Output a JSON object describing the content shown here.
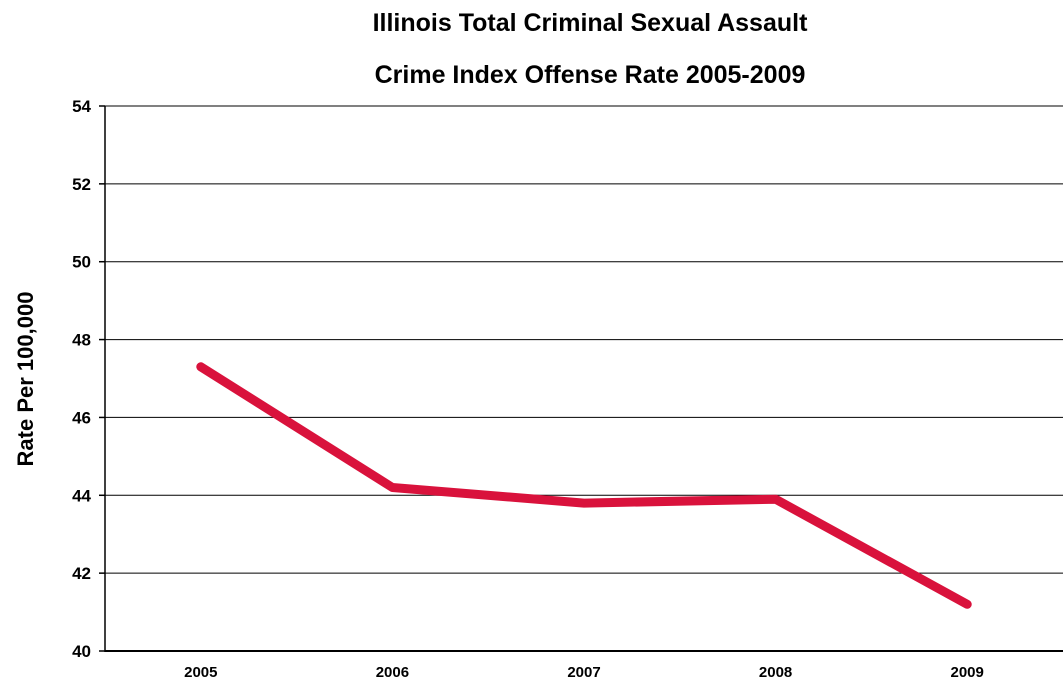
{
  "chart_data": {
    "type": "line",
    "title_line1": "Illinois Total Criminal Sexual Assault",
    "title_line2": "Crime Index Offense Rate 2005-2009",
    "xlabel": "",
    "ylabel": "Rate Per 100,000",
    "categories": [
      "2005",
      "2006",
      "2007",
      "2008",
      "2009"
    ],
    "series": [
      {
        "values": [
          47.3,
          44.2,
          43.8,
          43.9,
          41.2
        ],
        "color": "#d9123c"
      }
    ],
    "ylim": [
      40,
      54
    ],
    "yticks": [
      40,
      42,
      44,
      46,
      48,
      50,
      52,
      54
    ],
    "grid": true,
    "legend": "none"
  }
}
